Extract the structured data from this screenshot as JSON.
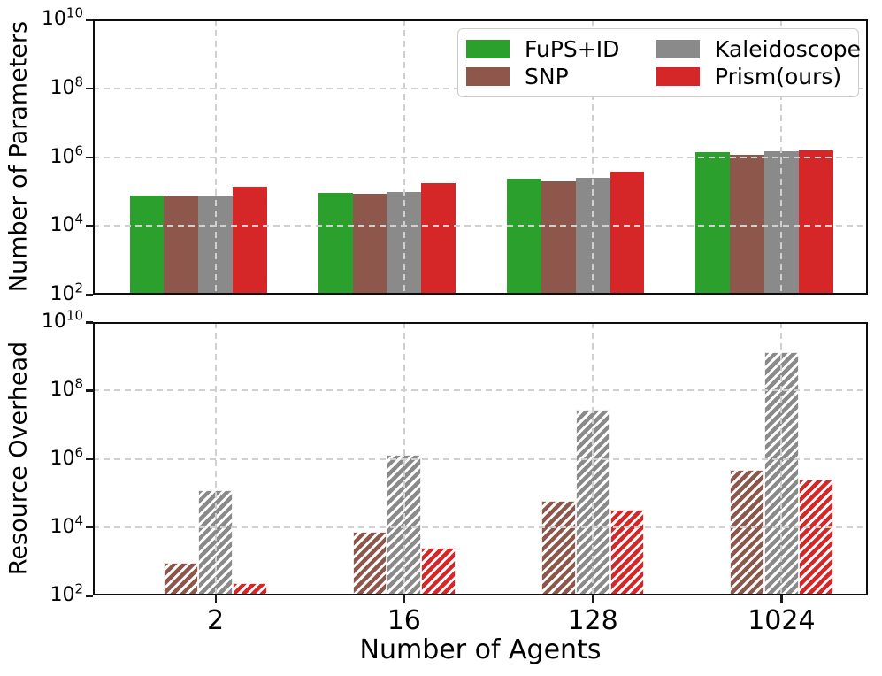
{
  "figure_colors": {
    "background": "#ffffff",
    "spine": "#0d0d0d",
    "gridline": "#d0d0d0",
    "text": "#000000"
  },
  "legend": {
    "items": [
      {
        "label": "FuPS+ID",
        "color": "#2ca02c"
      },
      {
        "label": "SNP",
        "color": "#8d574b"
      },
      {
        "label": "Kaleidoscope",
        "color": "#8a8a8a"
      },
      {
        "label": "Prism(ours)",
        "color": "#d62728"
      }
    ]
  },
  "chart_data": [
    {
      "type": "bar",
      "ylabel": "Number of Parameters",
      "xlabel": "",
      "yscale": "log",
      "ylim": [
        100,
        10000000000
      ],
      "ytick_exponents": [
        2,
        4,
        6,
        8,
        10
      ],
      "grid": true,
      "legend_position": "upper right",
      "categories": [
        "2",
        "16",
        "128",
        "1024"
      ],
      "series": [
        {
          "name": "FuPS+ID",
          "color": "#2ca02c",
          "hatch": false,
          "values": [
            74000,
            93000,
            240000,
            1400000
          ]
        },
        {
          "name": "SNP",
          "color": "#8d574b",
          "hatch": false,
          "values": [
            71000,
            88000,
            200000,
            1150000
          ]
        },
        {
          "name": "Kaleidoscope",
          "color": "#8a8a8a",
          "hatch": false,
          "values": [
            77000,
            96000,
            245000,
            1500000
          ]
        },
        {
          "name": "Prism(ours)",
          "color": "#d62728",
          "hatch": false,
          "values": [
            140000,
            170000,
            370000,
            1600000
          ]
        }
      ]
    },
    {
      "type": "bar",
      "ylabel": "Resource Overhead",
      "xlabel": "Number of Agents",
      "yscale": "log",
      "ylim": [
        100,
        10000000000
      ],
      "ytick_exponents": [
        2,
        4,
        6,
        8,
        10
      ],
      "grid": true,
      "legend_position": "none",
      "categories": [
        "2",
        "16",
        "128",
        "1024"
      ],
      "series": [
        {
          "name": "FuPS+ID",
          "color": "#2ca02c",
          "hatch": true,
          "values": [
            null,
            null,
            null,
            null
          ]
        },
        {
          "name": "SNP",
          "color": "#8d574b",
          "hatch": true,
          "values": [
            900,
            7500,
            60000,
            480000
          ]
        },
        {
          "name": "Kaleidoscope",
          "color": "#8a8a8a",
          "hatch": true,
          "values": [
            120000,
            1300000,
            27000000,
            1300000000
          ]
        },
        {
          "name": "Prism(ours)",
          "color": "#d62728",
          "hatch": true,
          "values": [
            230,
            2500,
            32000,
            240000
          ]
        }
      ]
    }
  ]
}
